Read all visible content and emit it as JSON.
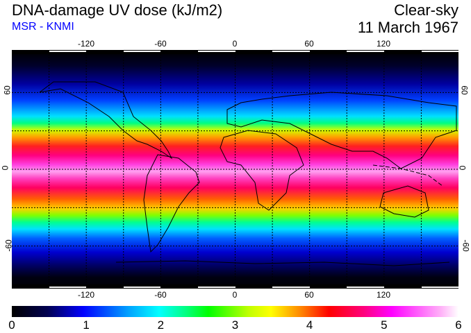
{
  "header": {
    "title": "DNA-damage UV dose (kJ/m2)",
    "subtitle": "MSR - KNMI",
    "condition": "Clear-sky",
    "date": "11 March 1967"
  },
  "map": {
    "lon_ticks": [
      "-120",
      "-60",
      "0",
      "60",
      "120"
    ],
    "lat_ticks": [
      "60",
      "0",
      "-60"
    ],
    "lon_range": [
      -180,
      180
    ],
    "lat_range": [
      -90,
      90
    ],
    "grid_spacing_deg": 30
  },
  "colorbar": {
    "ticks": [
      "0",
      "1",
      "2",
      "3",
      "4",
      "5",
      "6"
    ],
    "range": [
      0,
      6
    ],
    "units": "kJ/m2",
    "colors": [
      "#000000",
      "#0000ff",
      "#00ffff",
      "#00ff00",
      "#ffff00",
      "#ff0000",
      "#ff00ff",
      "#ffffff"
    ]
  }
}
